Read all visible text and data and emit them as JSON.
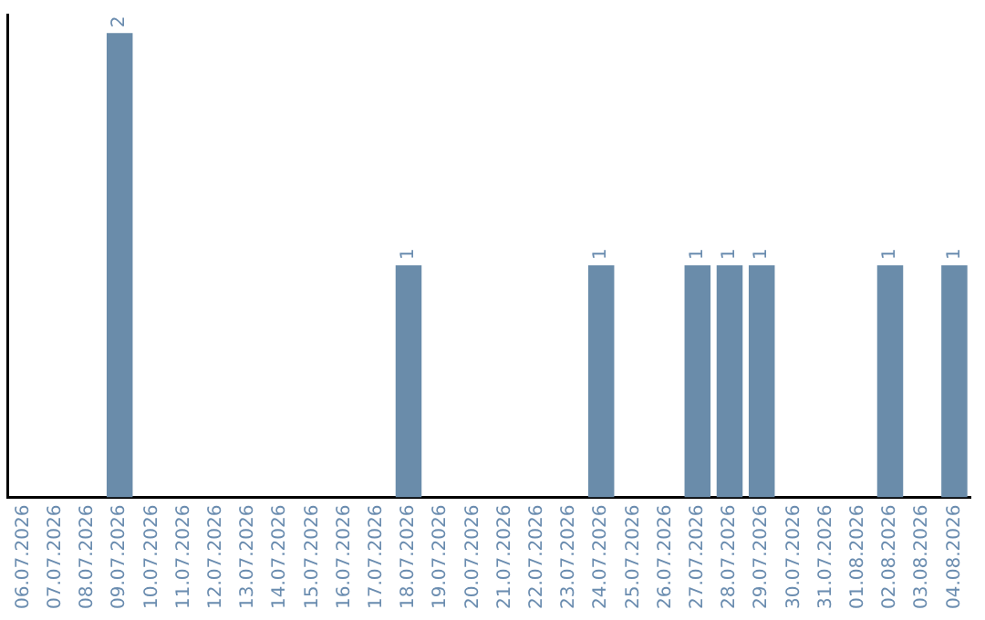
{
  "chart_data": {
    "type": "bar",
    "categories": [
      "06.07.2026",
      "07.07.2026",
      "08.07.2026",
      "09.07.2026",
      "10.07.2026",
      "11.07.2026",
      "12.07.2026",
      "13.07.2026",
      "14.07.2026",
      "15.07.2026",
      "16.07.2026",
      "17.07.2026",
      "18.07.2026",
      "19.07.2026",
      "20.07.2026",
      "21.07.2026",
      "22.07.2026",
      "23.07.2026",
      "24.07.2026",
      "25.07.2026",
      "26.07.2026",
      "27.07.2026",
      "28.07.2026",
      "29.07.2026",
      "30.07.2026",
      "31.07.2026",
      "01.08.2026",
      "02.08.2026",
      "03.08.2026",
      "04.08.2026"
    ],
    "values": [
      0,
      0,
      0,
      2,
      0,
      0,
      0,
      0,
      0,
      0,
      0,
      0,
      1,
      0,
      0,
      0,
      0,
      0,
      1,
      0,
      0,
      1,
      1,
      1,
      0,
      0,
      0,
      1,
      0,
      1
    ],
    "value_labels": [
      null,
      null,
      null,
      "2",
      null,
      null,
      null,
      null,
      null,
      null,
      null,
      null,
      "1",
      null,
      null,
      null,
      null,
      null,
      "1",
      null,
      null,
      "1",
      "1",
      "1",
      null,
      null,
      null,
      "1",
      null,
      "1"
    ],
    "color": "#6a8caa",
    "ylim": [
      0,
      2.08
    ],
    "tick_labels": "x",
    "grid": false,
    "legend": false
  }
}
